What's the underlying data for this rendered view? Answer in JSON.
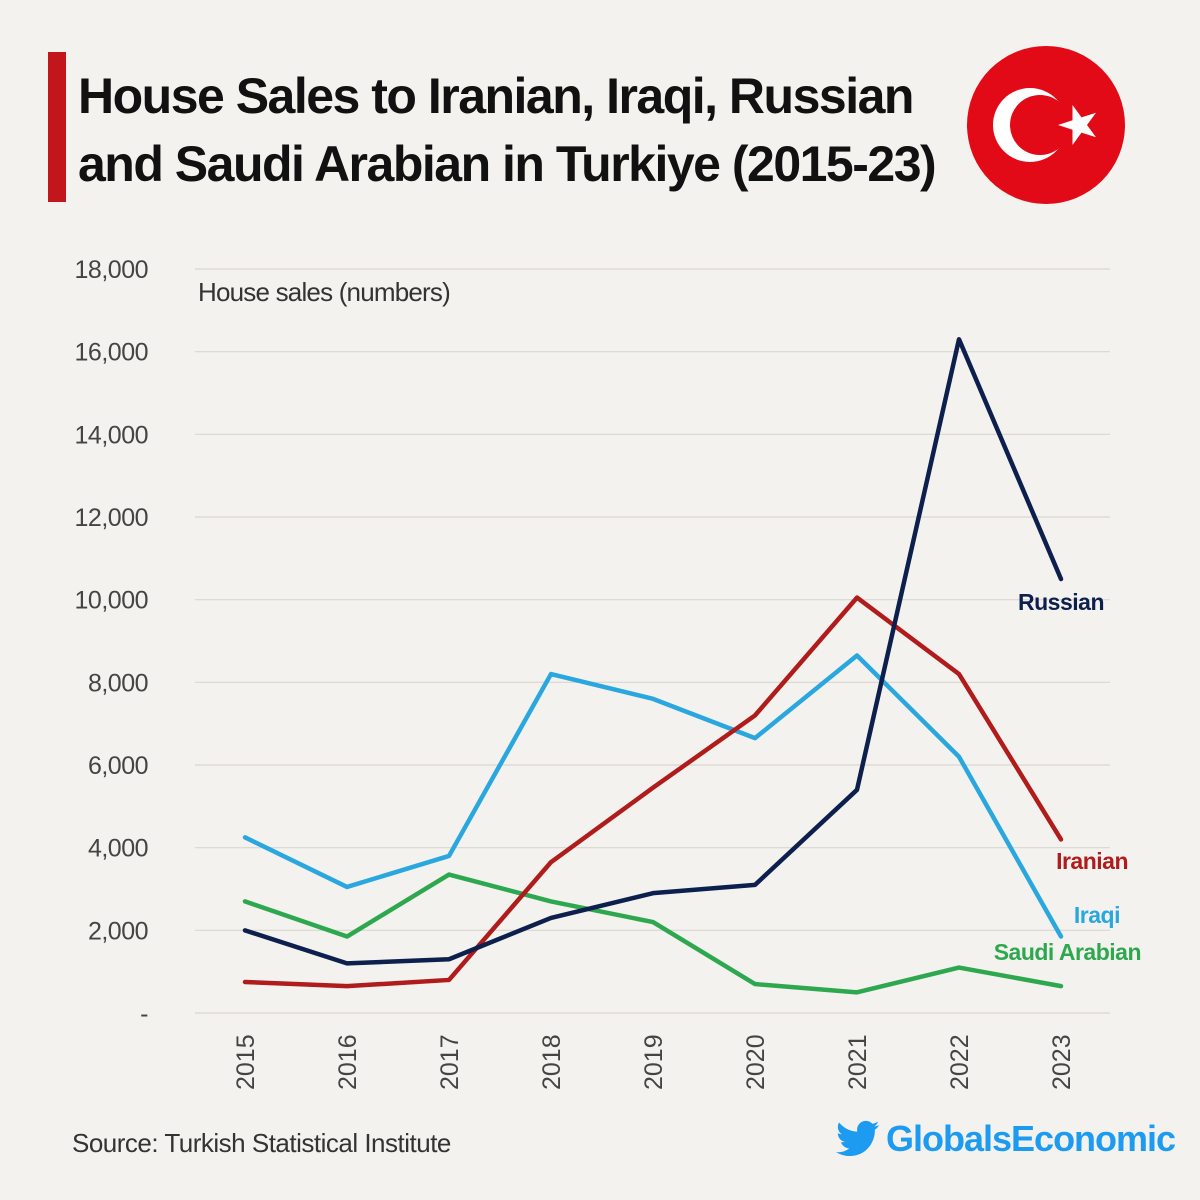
{
  "title": {
    "line1": "House Sales to Iranian, Iraqi, Russian",
    "line2": "and Saudi Arabian in Turkiye (2015-23)"
  },
  "flag_icon": "turkey-flag-icon",
  "source": "Source: Turkish Statistical Institute",
  "brand": {
    "icon": "twitter-bird-icon",
    "label": "GlobalsEconomic",
    "color": "#1d9bf0"
  },
  "colors": {
    "accent": "#c3161c",
    "background": "#f4f2ee",
    "grid": "#d9d6d1"
  },
  "chart_data": {
    "type": "line",
    "ylabel": "House sales (numbers)",
    "ylim": [
      0,
      18000
    ],
    "yticks": [
      "-",
      "2,000",
      "4,000",
      "6,000",
      "8,000",
      "10,000",
      "12,000",
      "14,000",
      "16,000",
      "18,000"
    ],
    "ytick_values": [
      0,
      2000,
      4000,
      6000,
      8000,
      10000,
      12000,
      14000,
      16000,
      18000
    ],
    "categories": [
      "2015",
      "2016",
      "2017",
      "2018",
      "2019",
      "2020",
      "2021",
      "2022",
      "2023"
    ],
    "grid": true,
    "series": [
      {
        "name": "Russian",
        "color": "#0d1f4d",
        "values": [
          2000,
          1200,
          1300,
          2300,
          2900,
          3100,
          5400,
          16300,
          10500
        ]
      },
      {
        "name": "Iranian",
        "color": "#b01c1c",
        "values": [
          750,
          650,
          800,
          3650,
          5450,
          7200,
          10050,
          8200,
          4200
        ]
      },
      {
        "name": "Iraqi",
        "color": "#2aa7df",
        "values": [
          4250,
          3050,
          3800,
          8200,
          7600,
          6650,
          8650,
          6200,
          1850
        ]
      },
      {
        "name": "Saudi Arabian",
        "color": "#2ea84f",
        "values": [
          2700,
          1850,
          3350,
          2700,
          2200,
          700,
          500,
          1100,
          650
        ]
      }
    ]
  }
}
